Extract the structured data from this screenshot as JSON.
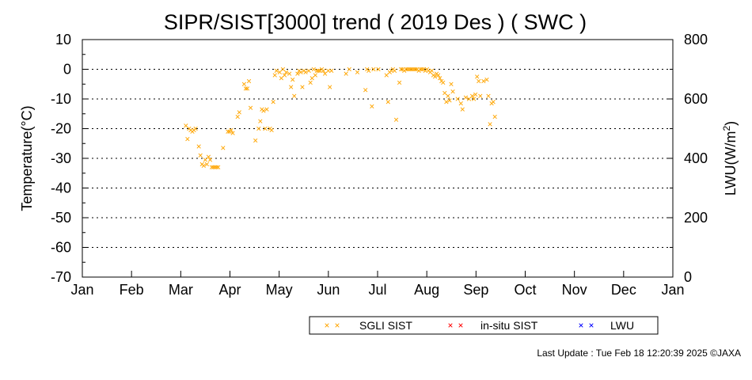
{
  "chart_data": {
    "type": "scatter",
    "title": "SIPR/SIST[3000] trend ( 2019 Des ) ( SWC )",
    "ylabel": "Temperature(°C)",
    "y2label_main": "LWU(W/m",
    "y2label_sup": "2",
    "y2label_tail": ")",
    "ylim": [
      -70,
      10
    ],
    "y2lim": [
      0,
      800
    ],
    "yticks": [
      "10",
      "0",
      "-10",
      "-20",
      "-30",
      "-40",
      "-50",
      "-60",
      "-70"
    ],
    "y2ticks": [
      "800",
      "600",
      "400",
      "200",
      "0"
    ],
    "months": [
      "Jan",
      "Feb",
      "Mar",
      "Apr",
      "May",
      "Jun",
      "Jul",
      "Aug",
      "Sep",
      "Oct",
      "Nov",
      "Dec",
      "Jan"
    ],
    "grid": "horizontal dotted",
    "legend_position": "bottom-right",
    "series": [
      {
        "name": "SGLI SIST",
        "color": "#FFA500",
        "marker": "x",
        "points": [
          [
            65,
            -19
          ],
          [
            66,
            -23.5
          ],
          [
            67,
            -20
          ],
          [
            68,
            -20.5
          ],
          [
            69,
            -21
          ],
          [
            70,
            -20.5
          ],
          [
            71,
            -20
          ],
          [
            73,
            -26
          ],
          [
            74,
            -29
          ],
          [
            75,
            -32
          ],
          [
            76,
            -32.5
          ],
          [
            77,
            -30.5
          ],
          [
            78,
            -32
          ],
          [
            79,
            -29.5
          ],
          [
            80,
            -30.5
          ],
          [
            81,
            -33
          ],
          [
            82,
            -33
          ],
          [
            83,
            -33
          ],
          [
            84,
            -33
          ],
          [
            85,
            -33
          ],
          [
            88,
            -26.5
          ],
          [
            91,
            -21
          ],
          [
            92,
            -21
          ],
          [
            93,
            -20.5
          ],
          [
            94,
            -21.5
          ],
          [
            97,
            -16
          ],
          [
            98,
            -14.5
          ],
          [
            101,
            -5
          ],
          [
            102,
            -6.5
          ],
          [
            103,
            -6.5
          ],
          [
            104,
            -4
          ],
          [
            105,
            -13
          ],
          [
            108,
            -24
          ],
          [
            110,
            -20
          ],
          [
            111,
            -17.5
          ],
          [
            112,
            -13.5
          ],
          [
            113,
            -14
          ],
          [
            114,
            -20
          ],
          [
            115,
            -13.5
          ],
          [
            117,
            -20
          ],
          [
            118,
            -20.5
          ],
          [
            119,
            -11
          ],
          [
            120,
            -2
          ],
          [
            121,
            -0.5
          ],
          [
            123,
            -1
          ],
          [
            124,
            -3
          ],
          [
            125,
            0
          ],
          [
            126,
            -2
          ],
          [
            127,
            -1
          ],
          [
            129,
            -1.5
          ],
          [
            130,
            -6
          ],
          [
            131,
            -3.5
          ],
          [
            132,
            -9
          ],
          [
            134,
            -1.5
          ],
          [
            135,
            -0.5
          ],
          [
            136,
            -1
          ],
          [
            137,
            -6
          ],
          [
            138,
            -0.5
          ],
          [
            139,
            -1
          ],
          [
            141,
            -0.5
          ],
          [
            142,
            -4.5
          ],
          [
            143,
            -3
          ],
          [
            144,
            0
          ],
          [
            145,
            -2
          ],
          [
            146,
            -0.5
          ],
          [
            147,
            -0.5
          ],
          [
            148,
            -0.5
          ],
          [
            149,
            0
          ],
          [
            150,
            -0.5
          ],
          [
            151,
            -1.5
          ],
          [
            153,
            -0.5
          ],
          [
            154,
            -6
          ],
          [
            155,
            -0.5
          ],
          [
            164,
            -1.5
          ],
          [
            166,
            0
          ],
          [
            171,
            -1
          ],
          [
            176,
            -7
          ],
          [
            177,
            0
          ],
          [
            178,
            -0.5
          ],
          [
            180,
            -12.5
          ],
          [
            181,
            0
          ],
          [
            184,
            0
          ],
          [
            189,
            -2
          ],
          [
            190,
            -11
          ],
          [
            191,
            -1
          ],
          [
            192,
            -0.5
          ],
          [
            193,
            0
          ],
          [
            194,
            -0.5
          ],
          [
            195,
            -17
          ],
          [
            197,
            -4.5
          ],
          [
            198,
            0
          ],
          [
            199,
            0
          ],
          [
            200,
            -0.5
          ],
          [
            201,
            0
          ],
          [
            202,
            0
          ],
          [
            203,
            0
          ],
          [
            204,
            0
          ],
          [
            205,
            0
          ],
          [
            206,
            0
          ],
          [
            207,
            0
          ],
          [
            208,
            0
          ],
          [
            209,
            -0.5
          ],
          [
            210,
            0
          ],
          [
            211,
            0
          ],
          [
            212,
            0
          ],
          [
            213,
            -0.5
          ],
          [
            214,
            0
          ],
          [
            215,
            -0.5
          ],
          [
            216,
            -1
          ],
          [
            217,
            -0.5
          ],
          [
            218,
            -2
          ],
          [
            219,
            -2.5
          ],
          [
            220,
            -1.5
          ],
          [
            221,
            -2
          ],
          [
            222,
            -3
          ],
          [
            223,
            -4
          ],
          [
            224,
            -4.5
          ],
          [
            225,
            -8
          ],
          [
            226,
            -11
          ],
          [
            227,
            -9
          ],
          [
            228,
            -10.5
          ],
          [
            229,
            -5
          ],
          [
            230,
            -7.5
          ],
          [
            233,
            -10
          ],
          [
            235,
            -11.5
          ],
          [
            236,
            -13.5
          ],
          [
            238,
            -9.5
          ],
          [
            240,
            -10
          ],
          [
            242,
            -9
          ],
          [
            243,
            -10
          ],
          [
            244,
            -8.5
          ],
          [
            245,
            -2.5
          ],
          [
            246,
            -4
          ],
          [
            247,
            -9
          ],
          [
            249,
            -4
          ],
          [
            251,
            -3.5
          ],
          [
            252,
            -9
          ],
          [
            253,
            -18.5
          ],
          [
            254,
            -11.5
          ],
          [
            255,
            -11
          ],
          [
            256,
            -16
          ]
        ]
      },
      {
        "name": "in-situ SIST",
        "color": "#FF0000",
        "marker": "x",
        "points": []
      },
      {
        "name": "LWU",
        "color": "#0000FF",
        "marker": "x",
        "points": []
      }
    ],
    "footer": "Last Update : Tue Feb 18 12:20:39 2025  ©JAXA"
  }
}
